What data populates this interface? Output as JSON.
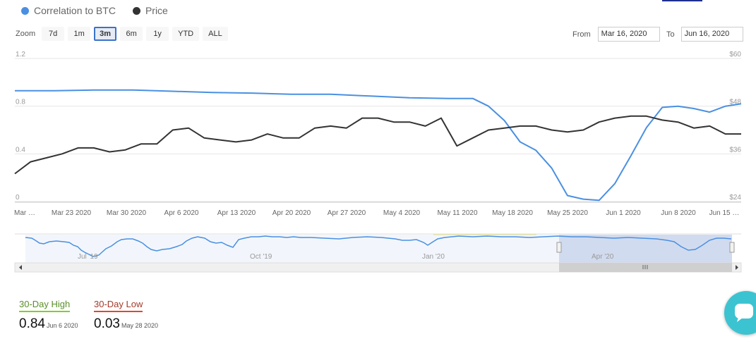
{
  "legend": [
    {
      "label": "Correlation to BTC",
      "color": "#4a90e2"
    },
    {
      "label": "Price",
      "color": "#333333"
    }
  ],
  "zoom": {
    "label": "Zoom",
    "buttons": [
      "7d",
      "1m",
      "3m",
      "6m",
      "1y",
      "YTD",
      "ALL"
    ],
    "active": "3m"
  },
  "range": {
    "from_label": "From",
    "from_value": "Mar 16, 2020",
    "to_label": "To",
    "to_value": "Jun 16, 2020"
  },
  "chart_data": {
    "type": "line",
    "title": "",
    "xlabel": "",
    "ylabel": "",
    "x_ticks": [
      "Mar …",
      "Mar 23 2020",
      "Mar 30 2020",
      "Apr 6 2020",
      "Apr 13 2020",
      "Apr 20 2020",
      "Apr 27 2020",
      "May 4 2020",
      "May 11 2020",
      "May 18 2020",
      "May 25 2020",
      "Jun 1 2020",
      "Jun 8 2020",
      "Jun 15 …"
    ],
    "y_left_ticks": [
      "1.2",
      "0.8",
      "0.4",
      "0"
    ],
    "y_right_ticks": [
      "$60",
      "$48",
      "$36",
      "$24"
    ],
    "ylim_left": [
      0,
      1.2
    ],
    "ylim_right": [
      24,
      60
    ],
    "x_range_days": [
      0,
      92
    ],
    "grid": true,
    "legend_position": "top-left",
    "series": [
      {
        "name": "Correlation to BTC",
        "axis": "left",
        "color": "#4a90e2",
        "x": [
          0,
          5,
          10,
          15,
          20,
          25,
          30,
          35,
          40,
          45,
          50,
          55,
          58,
          60,
          62,
          64,
          66,
          68,
          70,
          72,
          74,
          76,
          78,
          80,
          82,
          84,
          86,
          88,
          90,
          92
        ],
        "y": [
          0.93,
          0.93,
          0.935,
          0.935,
          0.925,
          0.915,
          0.91,
          0.9,
          0.9,
          0.885,
          0.87,
          0.865,
          0.865,
          0.8,
          0.68,
          0.5,
          0.43,
          0.28,
          0.05,
          0.02,
          0.01,
          0.15,
          0.38,
          0.62,
          0.79,
          0.8,
          0.78,
          0.75,
          0.8,
          0.82
        ]
      },
      {
        "name": "Price",
        "axis": "right",
        "color": "#333333",
        "x": [
          0,
          2,
          4,
          6,
          8,
          10,
          12,
          14,
          16,
          18,
          20,
          22,
          24,
          26,
          28,
          30,
          32,
          34,
          36,
          38,
          40,
          42,
          44,
          46,
          48,
          50,
          52,
          54,
          56,
          58,
          60,
          62,
          64,
          66,
          68,
          70,
          72,
          74,
          76,
          78,
          80,
          82,
          84,
          86,
          88,
          90,
          92
        ],
        "y": [
          31,
          34,
          35,
          36,
          37.5,
          37.5,
          36.5,
          37,
          38.5,
          38.5,
          42,
          42.5,
          40,
          39.5,
          39,
          39.5,
          41,
          40,
          40,
          42.5,
          43,
          42.5,
          45,
          45,
          44,
          44,
          43,
          45,
          38,
          40,
          42,
          42.5,
          43,
          43,
          42,
          41.5,
          42,
          44,
          45,
          45.5,
          45.5,
          44.5,
          44,
          42.5,
          43,
          41,
          41
        ]
      }
    ]
  },
  "navigator": {
    "labels": [
      "Jul '19",
      "Oct '19",
      "Jan '20",
      "Apr '20"
    ]
  },
  "stats": [
    {
      "label": "30-Day High",
      "value": "0.84",
      "date": "Jun 6 2020",
      "color": "#7ed321"
    },
    {
      "label": "30-Day Low",
      "value": "0.03",
      "date": "May 28 2020",
      "color": "#e0482f"
    }
  ]
}
